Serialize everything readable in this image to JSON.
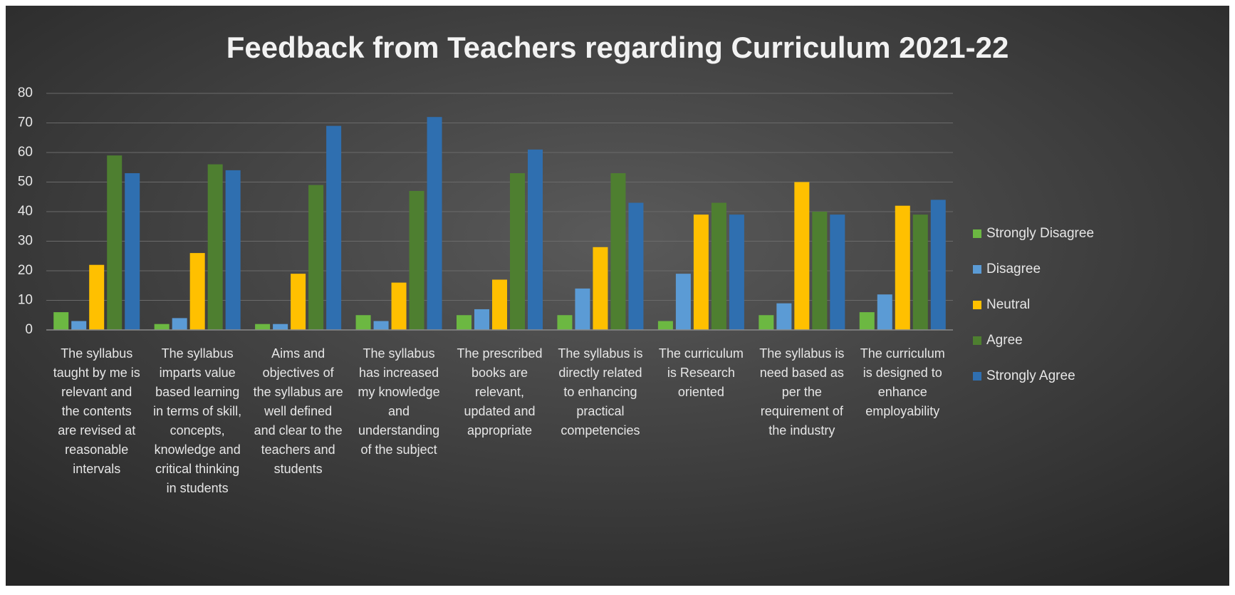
{
  "chart_data": {
    "type": "bar",
    "title": "Feedback from Teachers regarding Curriculum 2021-22",
    "categories": [
      [
        "The syllabus",
        "taught by me is",
        "relevant and",
        "the contents",
        "are revised at",
        "reasonable",
        "intervals"
      ],
      [
        "The syllabus",
        "imparts value",
        "based learning",
        "in terms of skill,",
        "concepts,",
        "knowledge and",
        "critical thinking",
        "in students"
      ],
      [
        "Aims and",
        "objectives of",
        "the syllabus are",
        "well defined",
        "and clear to the",
        "teachers and",
        "students"
      ],
      [
        "The syllabus",
        "has increased",
        "my knowledge",
        "and",
        "understanding",
        "of the subject"
      ],
      [
        "The prescribed",
        "books are",
        "relevant,",
        "updated and",
        "appropriate"
      ],
      [
        "The syllabus is",
        "directly related",
        "to enhancing",
        "practical",
        "competencies"
      ],
      [
        "The curriculum",
        "is Research",
        "oriented"
      ],
      [
        "The syllabus is",
        "need based as",
        "per the",
        "requirement of",
        "the industry"
      ],
      [
        "The curriculum",
        "is designed to",
        "enhance",
        "employability"
      ]
    ],
    "series": [
      {
        "name": "Strongly Disagree",
        "color": "#6cb842",
        "values": [
          6,
          2,
          2,
          5,
          5,
          5,
          3,
          5,
          6
        ]
      },
      {
        "name": "Disagree",
        "color": "#5b9bd5",
        "values": [
          3,
          4,
          2,
          3,
          7,
          14,
          19,
          9,
          12
        ]
      },
      {
        "name": "Neutral",
        "color": "#ffc000",
        "values": [
          22,
          26,
          19,
          16,
          17,
          28,
          39,
          50,
          42
        ]
      },
      {
        "name": "Agree",
        "color": "#4e7f30",
        "values": [
          59,
          56,
          49,
          47,
          53,
          53,
          43,
          40,
          39
        ]
      },
      {
        "name": "Strongly Agree",
        "color": "#2f6fb0",
        "values": [
          53,
          54,
          69,
          72,
          61,
          43,
          39,
          39,
          44
        ]
      }
    ],
    "ylim": [
      0,
      80
    ],
    "yticks": [
      0,
      10,
      20,
      30,
      40,
      50,
      60,
      70,
      80
    ],
    "grid": true,
    "legend": "right"
  }
}
